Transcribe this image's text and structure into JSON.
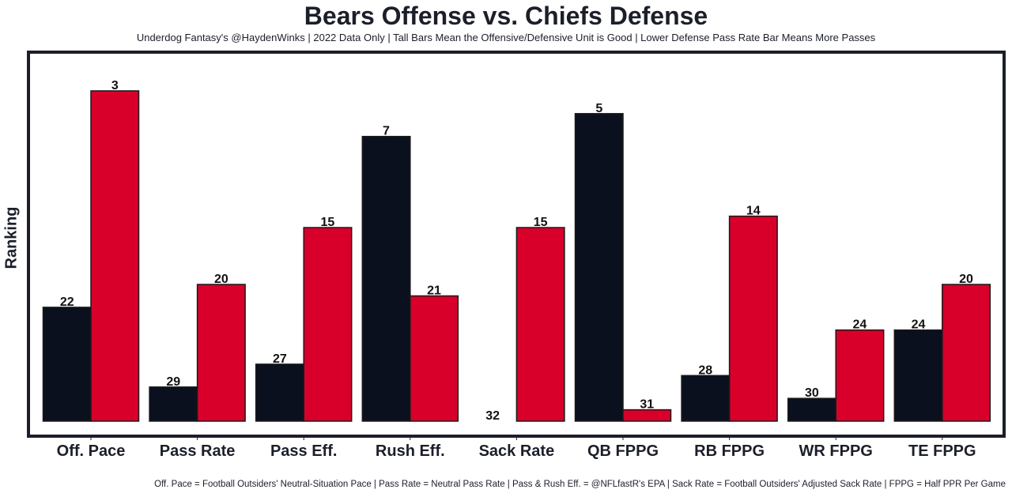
{
  "chart_data": {
    "type": "bar",
    "title": "Bears Offense vs. Chiefs Defense",
    "subtitle": "Underdog Fantasy's @HaydenWinks | 2022 Data Only | Tall Bars Mean the Offensive/Defensive Unit is Good | Lower Defense Pass Rate Bar Means More Passes",
    "footnote": "Off. Pace = Football Outsiders' Neutral-Situation Pace | Pass Rate = Neutral Pass Rate | Pass & Rush Eff. = @NFLfastR's EPA | Sack Rate = Football Outsiders' Adjusted Sack Rate | FPPG = Half PPR Per Game",
    "xlabel": "",
    "ylabel": "Ranking",
    "categories": [
      "Off. Pace",
      "Pass Rate",
      "Pass Eff.",
      "Rush Eff.",
      "Sack Rate",
      "QB FPPG",
      "RB FPPG",
      "WR FPPG",
      "TE FPPG"
    ],
    "series": [
      {
        "name": "Bears Offense",
        "color": "#0b101f",
        "values": [
          22,
          29,
          27,
          7,
          32,
          5,
          28,
          30,
          24
        ]
      },
      {
        "name": "Chiefs Defense",
        "color": "#d8002a",
        "values": [
          3,
          20,
          15,
          21,
          15,
          31,
          14,
          24,
          20
        ]
      }
    ],
    "bar_height_rule": "height proportional to 32 - ranking (rank 1 tallest)",
    "ylim": [
      0,
      32.4
    ],
    "grid": false,
    "legend": "none"
  }
}
